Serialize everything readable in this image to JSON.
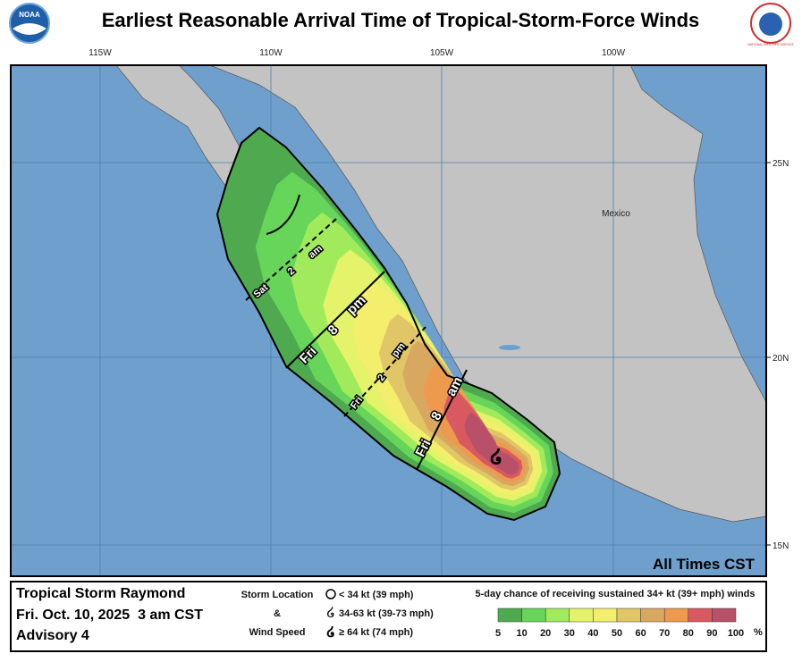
{
  "header": {
    "title": "Earliest Reasonable Arrival Time of Tropical-Storm-Force Winds",
    "noaa_logo": "NOAA",
    "nws_logo": "NATIONAL WEATHER SERVICE"
  },
  "map": {
    "longitudes": [
      "115W",
      "110W",
      "105W",
      "100W"
    ],
    "latitudes": [
      "25N",
      "20N",
      "15N"
    ],
    "country": "Mexico",
    "times": [
      {
        "day": "Sat",
        "hour": "2",
        "ampm": "am"
      },
      {
        "day": "Fri",
        "hour": "8",
        "ampm": "pm"
      },
      {
        "day": "Fri",
        "hour": "2",
        "ampm": "pm"
      },
      {
        "day": "Fri",
        "hour": "8",
        "ampm": "am"
      }
    ],
    "time_zone_note": "All Times CST"
  },
  "legend": {
    "storm_name": "Tropical Storm Raymond",
    "date": "Fri. Oct. 10, 2025  3 am CST",
    "advisory": "Advisory 4",
    "storm_location": "Storm Location",
    "ampersand": "&",
    "wind_speed": "Wind Speed",
    "symbols": [
      "< 34 kt (39 mph)",
      "34-63 kt (39-73 mph)",
      "≥ 64 kt (74 mph)"
    ],
    "scale_title": "5-day chance of receiving sustained 34+ kt (39+ mph) winds",
    "scale_labels": [
      5,
      10,
      20,
      30,
      40,
      50,
      60,
      70,
      80,
      90,
      100
    ],
    "scale_unit": "%",
    "scale_colors": [
      "#4faa4f",
      "#66d55a",
      "#a0ea5c",
      "#e4f36a",
      "#f3ee6c",
      "#e0c666",
      "#d8a860",
      "#ee9a4e",
      "#d85a60",
      "#b8506a",
      "#ac5ec8"
    ]
  }
}
